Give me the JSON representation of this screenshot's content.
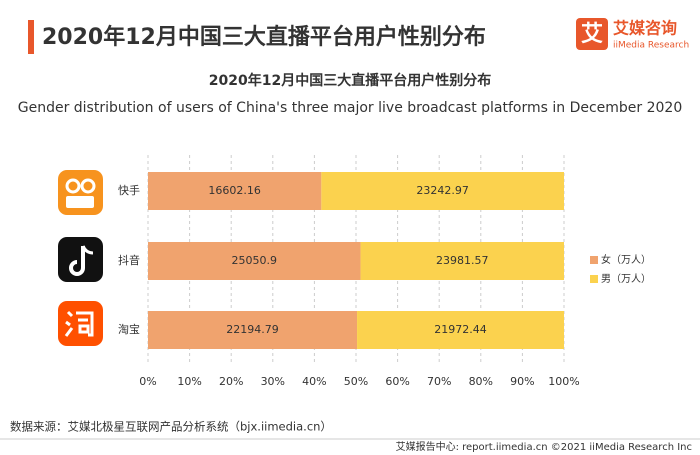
{
  "header": {
    "title": "2020年12月中国三大直播平台用户性别分布",
    "logo_mark": "艾",
    "logo_name": "艾媒咨询",
    "logo_sub": "iiMedia Research"
  },
  "chart_data": {
    "type": "bar",
    "orientation": "horizontal",
    "stacked_percent": true,
    "title": "2020年12月中国三大直播平台用户性别分布",
    "subtitle": "Gender distribution of users of China's three major live broadcast platforms in December 2020",
    "categories": [
      "快手",
      "抖音",
      "淘宝"
    ],
    "series": [
      {
        "name": "女（万人）",
        "color": "#f0a36e",
        "values": [
          16602.16,
          25050.9,
          22194.79
        ]
      },
      {
        "name": "男（万人）",
        "color": "#fbd24e",
        "values": [
          23242.97,
          23981.57,
          21972.44
        ]
      }
    ],
    "xlim": [
      0,
      100
    ],
    "xticks": [
      {
        "value": 0,
        "label": "0%"
      },
      {
        "value": 10,
        "label": "10%"
      },
      {
        "value": 20,
        "label": "20%"
      },
      {
        "value": 30,
        "label": "30%"
      },
      {
        "value": 40,
        "label": "40%"
      },
      {
        "value": 50,
        "label": "50%"
      },
      {
        "value": 60,
        "label": "60%"
      },
      {
        "value": 70,
        "label": "70%"
      },
      {
        "value": 80,
        "label": "80%"
      },
      {
        "value": 90,
        "label": "90%"
      },
      {
        "value": 100,
        "label": "100%"
      }
    ],
    "grid": true,
    "legend": "right"
  },
  "footer": {
    "source": "数据来源：艾媒北极星互联网产品分析系统（bjx.iimedia.cn）",
    "right": "艾媒报告中心: report.iimedia.cn  ©2021  iiMedia Research  Inc"
  }
}
